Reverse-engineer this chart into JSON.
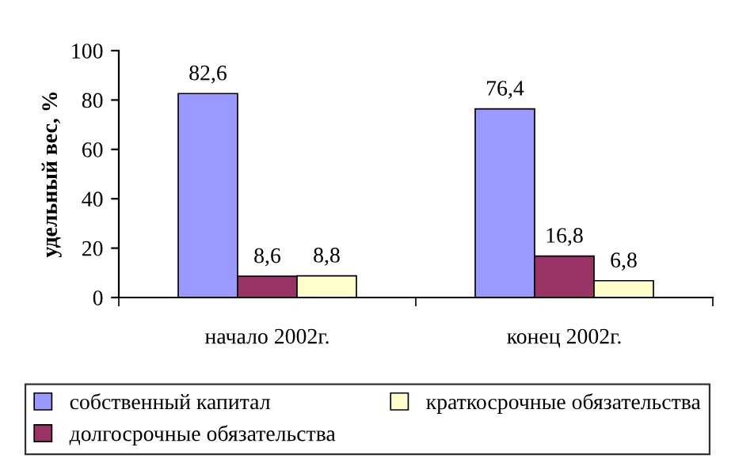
{
  "chart_data": {
    "type": "bar",
    "ylabel": "удельный вес, %",
    "categories": [
      "начало 2002г.",
      "конец 2002г."
    ],
    "series": [
      {
        "name": "собственный капитал",
        "color": "#9999ff",
        "values": [
          82.6,
          76.4
        ],
        "value_labels": [
          "82,6",
          "76,4"
        ]
      },
      {
        "name": "долгосрочные обязательства",
        "color": "#993366",
        "values": [
          8.6,
          16.8
        ],
        "value_labels": [
          "8,6",
          "16,8"
        ]
      },
      {
        "name": "краткосрочные обязательства",
        "color": "#ffffcc",
        "values": [
          8.8,
          6.8
        ],
        "value_labels": [
          "8,8",
          "6,8"
        ]
      }
    ],
    "ylim": [
      0,
      100
    ],
    "yticks": [
      0,
      20,
      40,
      60,
      80,
      100
    ],
    "grid": false,
    "legend": "bottom"
  }
}
